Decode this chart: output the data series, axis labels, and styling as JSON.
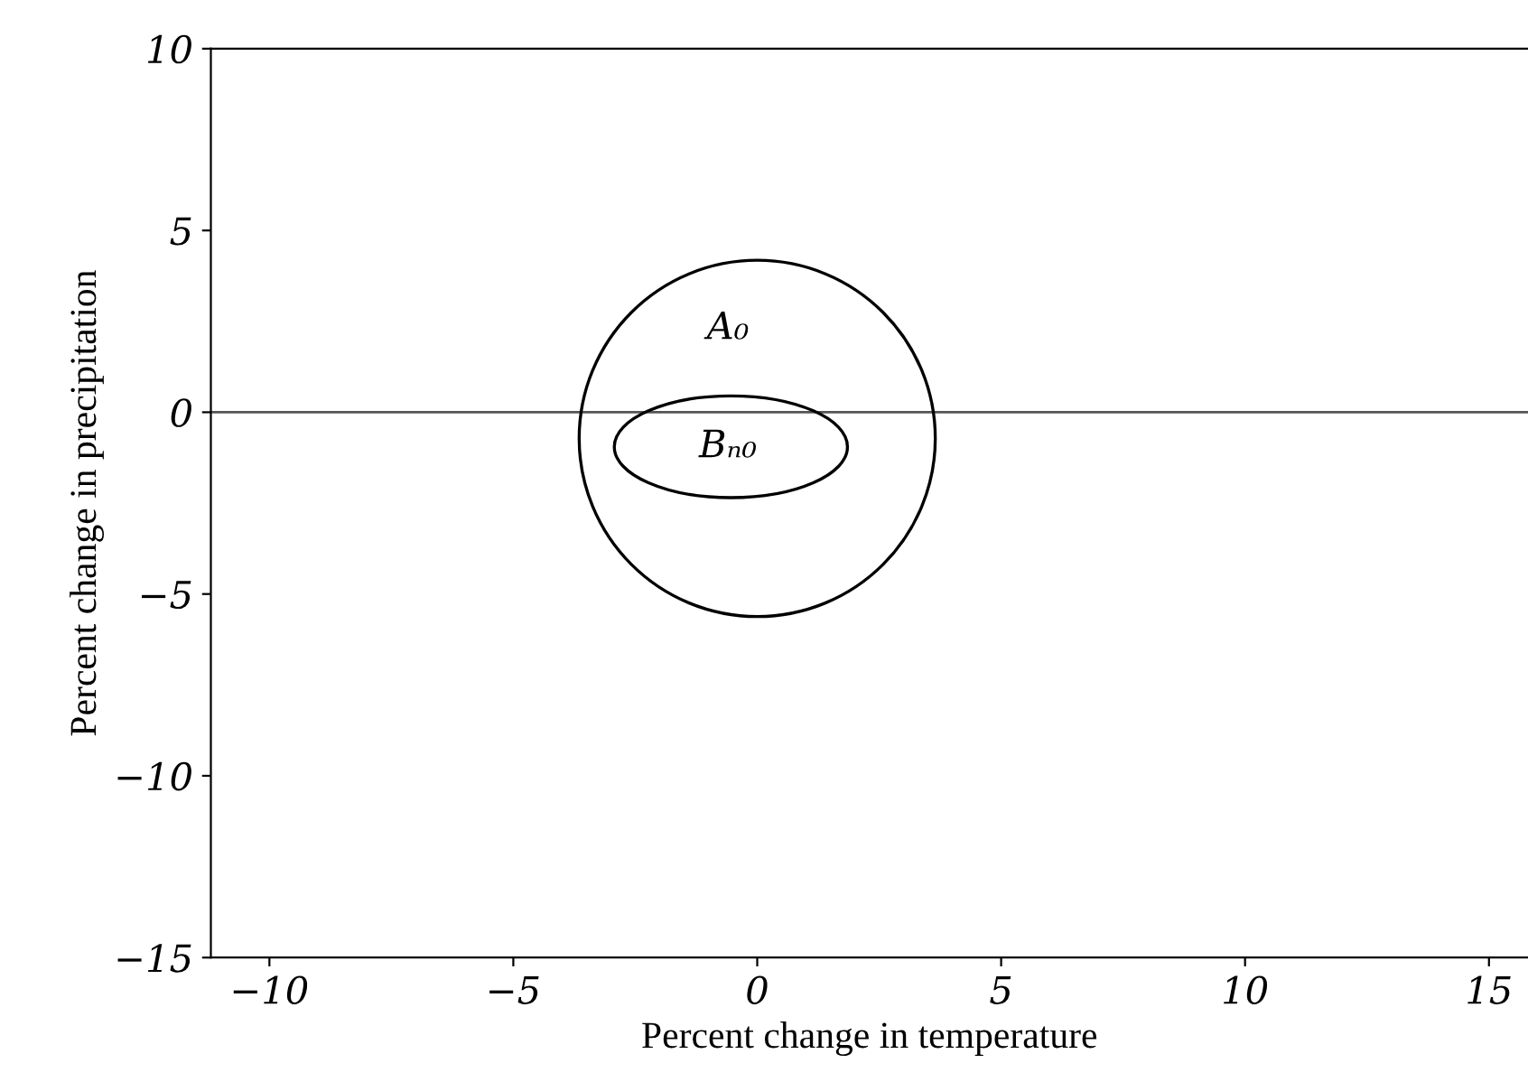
{
  "chart_data": {
    "type": "line",
    "xlabel": "Percent change in temperature",
    "ylabel": "Percent change in precipitation",
    "xlim": [
      -11.2,
      15.8
    ],
    "ylim": [
      -15,
      10
    ],
    "xticks": [
      -10,
      -5,
      0,
      5,
      10,
      15
    ],
    "yticks": [
      -15,
      -10,
      -5,
      0,
      5,
      10
    ],
    "grid": false,
    "legend": false,
    "ref_lines": [
      {
        "axis": "y",
        "value": 0,
        "color": "#555555",
        "line_style": "solid"
      }
    ],
    "annotations": [
      "A₀",
      "Bₙ₀"
    ]
  }
}
